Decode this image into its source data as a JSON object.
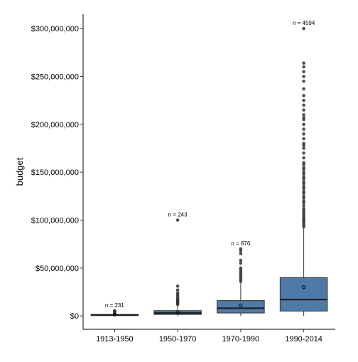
{
  "chart_data": {
    "type": "box",
    "ylabel": "budget",
    "xlabel": "",
    "ylim": [
      -14000000,
      315000000
    ],
    "y_ticks": [
      0,
      50000000,
      100000000,
      150000000,
      200000000,
      250000000,
      300000000
    ],
    "y_tick_labels": [
      "$0",
      "$50,000,000",
      "$100,000,000",
      "$150,000,000",
      "$200,000,000",
      "$250,000,000",
      "$300,000,000"
    ],
    "box_color": "#4f79a6",
    "grid": false,
    "categories": [
      "1913-1950",
      "1950-1970",
      "1970-1990",
      "1990-2014"
    ],
    "boxes": [
      {
        "category": "1913-1950",
        "count_label": "n = 231",
        "whisker_low": 0,
        "q1": 300000,
        "median": 900000,
        "q3": 1500000,
        "whisker_high": 2800000,
        "mean": 1200000,
        "outliers": [
          3000000,
          3300000,
          3700000,
          4000000,
          4400000,
          4800000,
          5300000
        ]
      },
      {
        "category": "1950-1970",
        "count_label": "n = 243",
        "whisker_low": 0,
        "q1": 1500000,
        "median": 3000000,
        "q3": 5500000,
        "whisker_high": 11000000,
        "mean": 4000000,
        "outliers": [
          12000000,
          13000000,
          14000000,
          15000000,
          16000000,
          17000000,
          18000000,
          20000000,
          22000000,
          24000000,
          27000000,
          31000000,
          100000000
        ]
      },
      {
        "category": "1970-1990",
        "count_label": "n = 876",
        "whisker_low": 0,
        "q1": 3000000,
        "median": 8000000,
        "q3": 16000000,
        "whisker_high": 35000000,
        "mean": 11000000,
        "outliers": [
          36000000,
          38000000,
          40000000,
          42000000,
          44000000,
          46000000,
          48000000,
          50000000,
          55000000,
          58000000,
          65000000,
          68000000,
          70000000
        ]
      },
      {
        "category": "1990-2014",
        "count_label": "n = 4594",
        "whisker_low": 0,
        "q1": 5000000,
        "median": 17000000,
        "q3": 40000000,
        "whisker_high": 92000000,
        "mean": 30000000,
        "outliers": [
          93000000,
          95000000,
          97000000,
          99000000,
          100000000,
          102000000,
          104000000,
          106000000,
          108000000,
          110000000,
          112000000,
          115000000,
          118000000,
          120000000,
          123000000,
          125000000,
          128000000,
          130000000,
          133000000,
          135000000,
          138000000,
          140000000,
          143000000,
          145000000,
          148000000,
          150000000,
          153000000,
          155000000,
          158000000,
          160000000,
          165000000,
          170000000,
          175000000,
          178000000,
          180000000,
          185000000,
          190000000,
          195000000,
          200000000,
          205000000,
          207000000,
          210000000,
          215000000,
          220000000,
          225000000,
          230000000,
          237000000,
          245000000,
          250000000,
          255000000,
          260000000,
          264000000,
          300000000
        ]
      }
    ]
  }
}
